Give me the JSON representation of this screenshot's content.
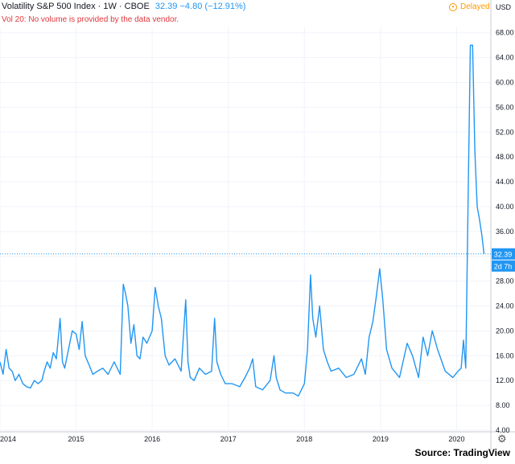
{
  "header": {
    "symbol_line": "Volatility S&P 500 Index · 1W · CBOE",
    "price_change": "32.39 −4.80 (−12.91%)",
    "volume_note": "Vol 20: No volume is provided by the data vendor.",
    "delayed_label": "Delayed",
    "currency": "USD"
  },
  "price_tag": {
    "last_value": "32.39",
    "countdown": "2d 7h"
  },
  "source": "Source: TradingView",
  "colors": {
    "line": "#2196f3",
    "grid": "#f0f3fa",
    "note": "#e0383e",
    "delayed": "#ff9800"
  },
  "chart_data": {
    "type": "line",
    "title": "Volatility S&P 500 Index · 1W · CBOE",
    "xlabel": "",
    "ylabel": "USD",
    "grid": true,
    "ylim": [
      4,
      69
    ],
    "xlim": [
      2014.0,
      2020.45
    ],
    "y_ticks": [
      4,
      8,
      12,
      16,
      20,
      24,
      28,
      32,
      36,
      40,
      44,
      48,
      52,
      56,
      60,
      64,
      68
    ],
    "y_tick_labels": [
      "4.00",
      "8.00",
      "12.00",
      "16.00",
      "20.00",
      "24.00",
      "28.00",
      "32.00",
      "36.00",
      "40.00",
      "44.00",
      "48.00",
      "52.00",
      "56.00",
      "60.00",
      "64.00",
      "68.00"
    ],
    "x_ticks": [
      2014,
      2015,
      2016,
      2017,
      2018,
      2019,
      2020
    ],
    "x_tick_labels": [
      "2014",
      "2015",
      "2016",
      "2017",
      "2018",
      "2019",
      "2020"
    ],
    "last_value": 32.39,
    "series": [
      {
        "x": [
          2014.0,
          2014.04,
          2014.08,
          2014.12,
          2014.16,
          2014.2,
          2014.25,
          2014.3,
          2014.35,
          2014.4,
          2014.45,
          2014.5,
          2014.55,
          2014.58,
          2014.62,
          2014.66,
          2014.7,
          2014.74,
          2014.79,
          2014.82,
          2014.85,
          2014.9,
          2014.95,
          2015.0,
          2015.04,
          2015.08,
          2015.12,
          2015.17,
          2015.22,
          2015.28,
          2015.35,
          2015.42,
          2015.5,
          2015.58,
          2015.62,
          2015.65,
          2015.68,
          2015.72,
          2015.76,
          2015.8,
          2015.84,
          2015.88,
          2015.93,
          2016.0,
          2016.04,
          2016.08,
          2016.12,
          2016.17,
          2016.22,
          2016.3,
          2016.38,
          2016.44,
          2016.47,
          2016.5,
          2016.55,
          2016.62,
          2016.7,
          2016.78,
          2016.82,
          2016.85,
          2016.9,
          2016.96,
          2017.05,
          2017.15,
          2017.22,
          2017.28,
          2017.32,
          2017.36,
          2017.45,
          2017.55,
          2017.6,
          2017.63,
          2017.68,
          2017.75,
          2017.85,
          2017.92,
          2018.0,
          2018.04,
          2018.08,
          2018.11,
          2018.15,
          2018.2,
          2018.25,
          2018.3,
          2018.35,
          2018.45,
          2018.55,
          2018.65,
          2018.75,
          2018.8,
          2018.85,
          2018.9,
          2018.95,
          2018.99,
          2019.03,
          2019.08,
          2019.15,
          2019.25,
          2019.35,
          2019.42,
          2019.5,
          2019.56,
          2019.62,
          2019.68,
          2019.75,
          2019.85,
          2019.95,
          2020.02,
          2020.06,
          2020.09,
          2020.12,
          2020.15,
          2020.18,
          2020.21,
          2020.24,
          2020.27,
          2020.3,
          2020.33,
          2020.36
        ],
        "y": [
          15.0,
          13.0,
          17.0,
          14.0,
          13.5,
          12.0,
          13.0,
          11.5,
          11.0,
          10.8,
          12.0,
          11.5,
          12.0,
          13.5,
          15.0,
          14.0,
          16.5,
          15.5,
          22.0,
          15.0,
          14.0,
          17.0,
          20.0,
          19.5,
          17.0,
          21.5,
          16.0,
          14.5,
          13.0,
          13.5,
          14.0,
          13.0,
          15.0,
          13.0,
          27.5,
          26.0,
          24.0,
          18.0,
          21.0,
          16.0,
          15.5,
          19.0,
          18.0,
          20.0,
          27.0,
          24.0,
          22.0,
          16.0,
          14.5,
          15.5,
          13.5,
          25.0,
          15.0,
          12.5,
          12.0,
          14.0,
          13.0,
          13.5,
          22.0,
          15.0,
          13.0,
          11.5,
          11.5,
          11.0,
          12.5,
          14.0,
          15.5,
          11.0,
          10.5,
          12.0,
          16.0,
          12.5,
          10.5,
          10.0,
          10.0,
          9.5,
          11.5,
          17.0,
          29.0,
          22.0,
          19.0,
          24.0,
          17.0,
          15.0,
          13.5,
          14.0,
          12.5,
          13.0,
          15.5,
          13.0,
          19.0,
          21.5,
          26.0,
          30.0,
          25.0,
          17.0,
          14.0,
          12.5,
          18.0,
          16.0,
          12.5,
          19.0,
          16.0,
          20.0,
          17.0,
          13.5,
          12.5,
          13.5,
          14.0,
          18.5,
          14.0,
          40.0,
          66.0,
          66.0,
          49.0,
          40.0,
          38.0,
          35.5,
          32.39
        ]
      }
    ]
  }
}
